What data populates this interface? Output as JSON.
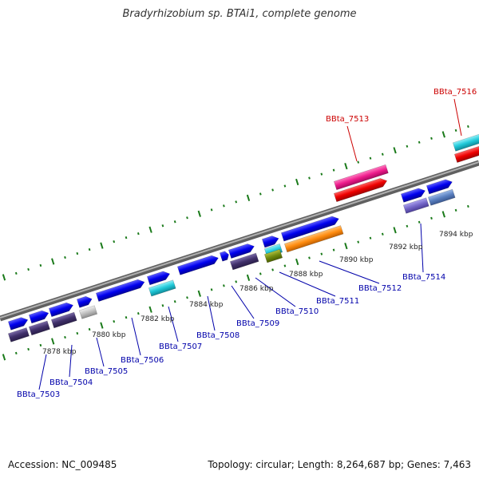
{
  "title": "Bradyrhizobium sp. BTAi1, complete genome",
  "footer": {
    "accession": "Accession: NC_009485",
    "summary": "Topology: circular; Length: 8,264,687 bp; Genes: 7,463"
  },
  "scale_labels": [
    "7878 kbp",
    "7880 kbp",
    "7882 kbp",
    "7884 kbp",
    "7886 kbp",
    "7888 kbp",
    "7890 kbp",
    "7892 kbp",
    "7894 kbp"
  ],
  "gene_labels": [
    {
      "name": "BBta_7503",
      "color": "#0000aa"
    },
    {
      "name": "BBta_7504",
      "color": "#0000aa"
    },
    {
      "name": "BBta_7505",
      "color": "#0000aa"
    },
    {
      "name": "BBta_7506",
      "color": "#0000aa"
    },
    {
      "name": "BBta_7507",
      "color": "#0000aa"
    },
    {
      "name": "BBta_7508",
      "color": "#0000aa"
    },
    {
      "name": "BBta_7509",
      "color": "#0000aa"
    },
    {
      "name": "BBta_7510",
      "color": "#0000aa"
    },
    {
      "name": "BBta_7511",
      "color": "#0000aa"
    },
    {
      "name": "BBta_7512",
      "color": "#0000aa"
    },
    {
      "name": "BBta_7514",
      "color": "#0000aa"
    },
    {
      "name": "BBta_7513",
      "color": "#cc0000"
    },
    {
      "name": "BBta_7516",
      "color": "#cc0000"
    }
  ],
  "colors": {
    "backbone": "#808080",
    "ticks": "#1a7a1a",
    "gene_forward": "#0000ee",
    "gene_dark": "#40306a",
    "rna_red": "#ee0000",
    "rna_pink": "#ee1c8c",
    "cyan": "#20c8d8",
    "orange": "#ff8c10",
    "grey": "#c0c0c0"
  }
}
